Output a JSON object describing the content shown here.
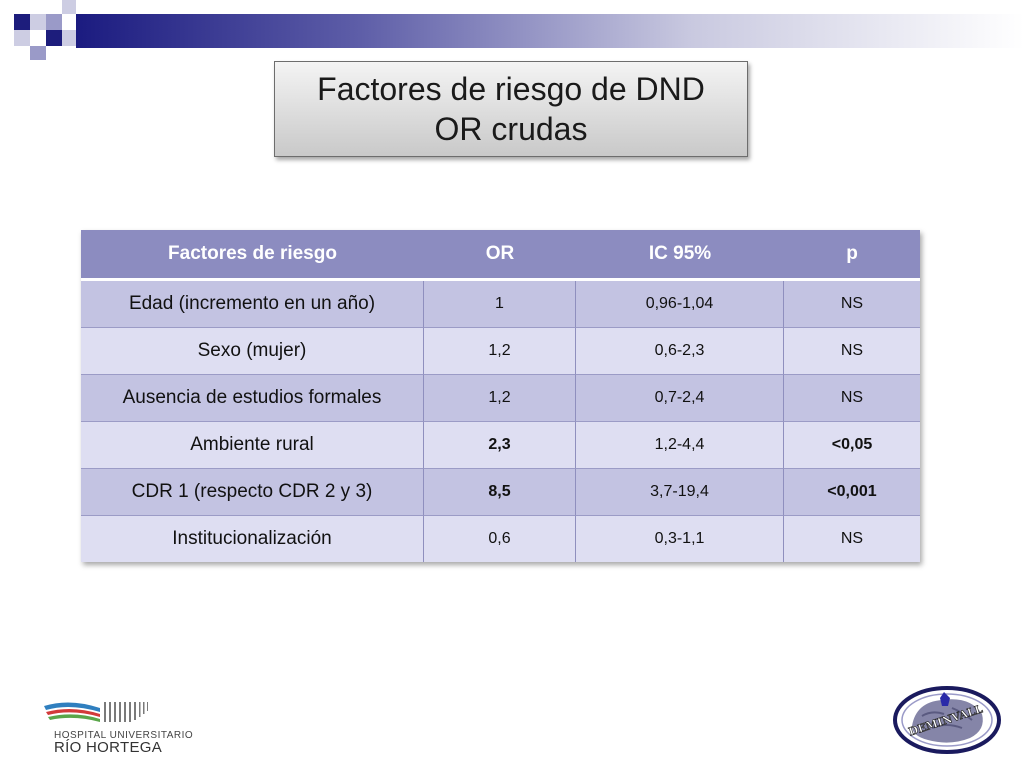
{
  "slide": {
    "title_line1": "Factores de riesgo de DND",
    "title_line2": "OR crudas"
  },
  "table": {
    "headers": [
      "Factores de riesgo",
      "OR",
      "IC 95%",
      "p"
    ],
    "rows": [
      {
        "factor": "Edad (incremento en un año)",
        "or": "1",
        "ci": "0,96-1,04",
        "p": "NS",
        "bold_or": false,
        "bold_p": false
      },
      {
        "factor": "Sexo (mujer)",
        "or": "1,2",
        "ci": "0,6-2,3",
        "p": "NS",
        "bold_or": false,
        "bold_p": false
      },
      {
        "factor": "Ausencia de estudios formales",
        "or": "1,2",
        "ci": "0,7-2,4",
        "p": "NS",
        "bold_or": false,
        "bold_p": false
      },
      {
        "factor": "Ambiente rural",
        "or": "2,3",
        "ci": "1,2-4,4",
        "p": "<0,05",
        "bold_or": true,
        "bold_p": true
      },
      {
        "factor": "CDR 1 (respecto CDR 2 y 3)",
        "or": "8,5",
        "ci": "3,7-19,4",
        "p": "<0,001",
        "bold_or": true,
        "bold_p": true
      },
      {
        "factor": "Institucionalización",
        "or": "0,6",
        "ci": "0,3-1,1",
        "p": "NS",
        "bold_or": false,
        "bold_p": false
      }
    ]
  },
  "logos": {
    "hospital_line1": "HOSPITAL UNIVERSITARIO",
    "hospital_line2": "RÍO HORTEGA",
    "deminvall_text": "DEMINVALL"
  },
  "colors": {
    "header_bg": "#8c8cc0",
    "row_odd_bg": "#c3c3e2",
    "row_even_bg": "#dedef2",
    "accent_navy": "#1d1d7c"
  }
}
